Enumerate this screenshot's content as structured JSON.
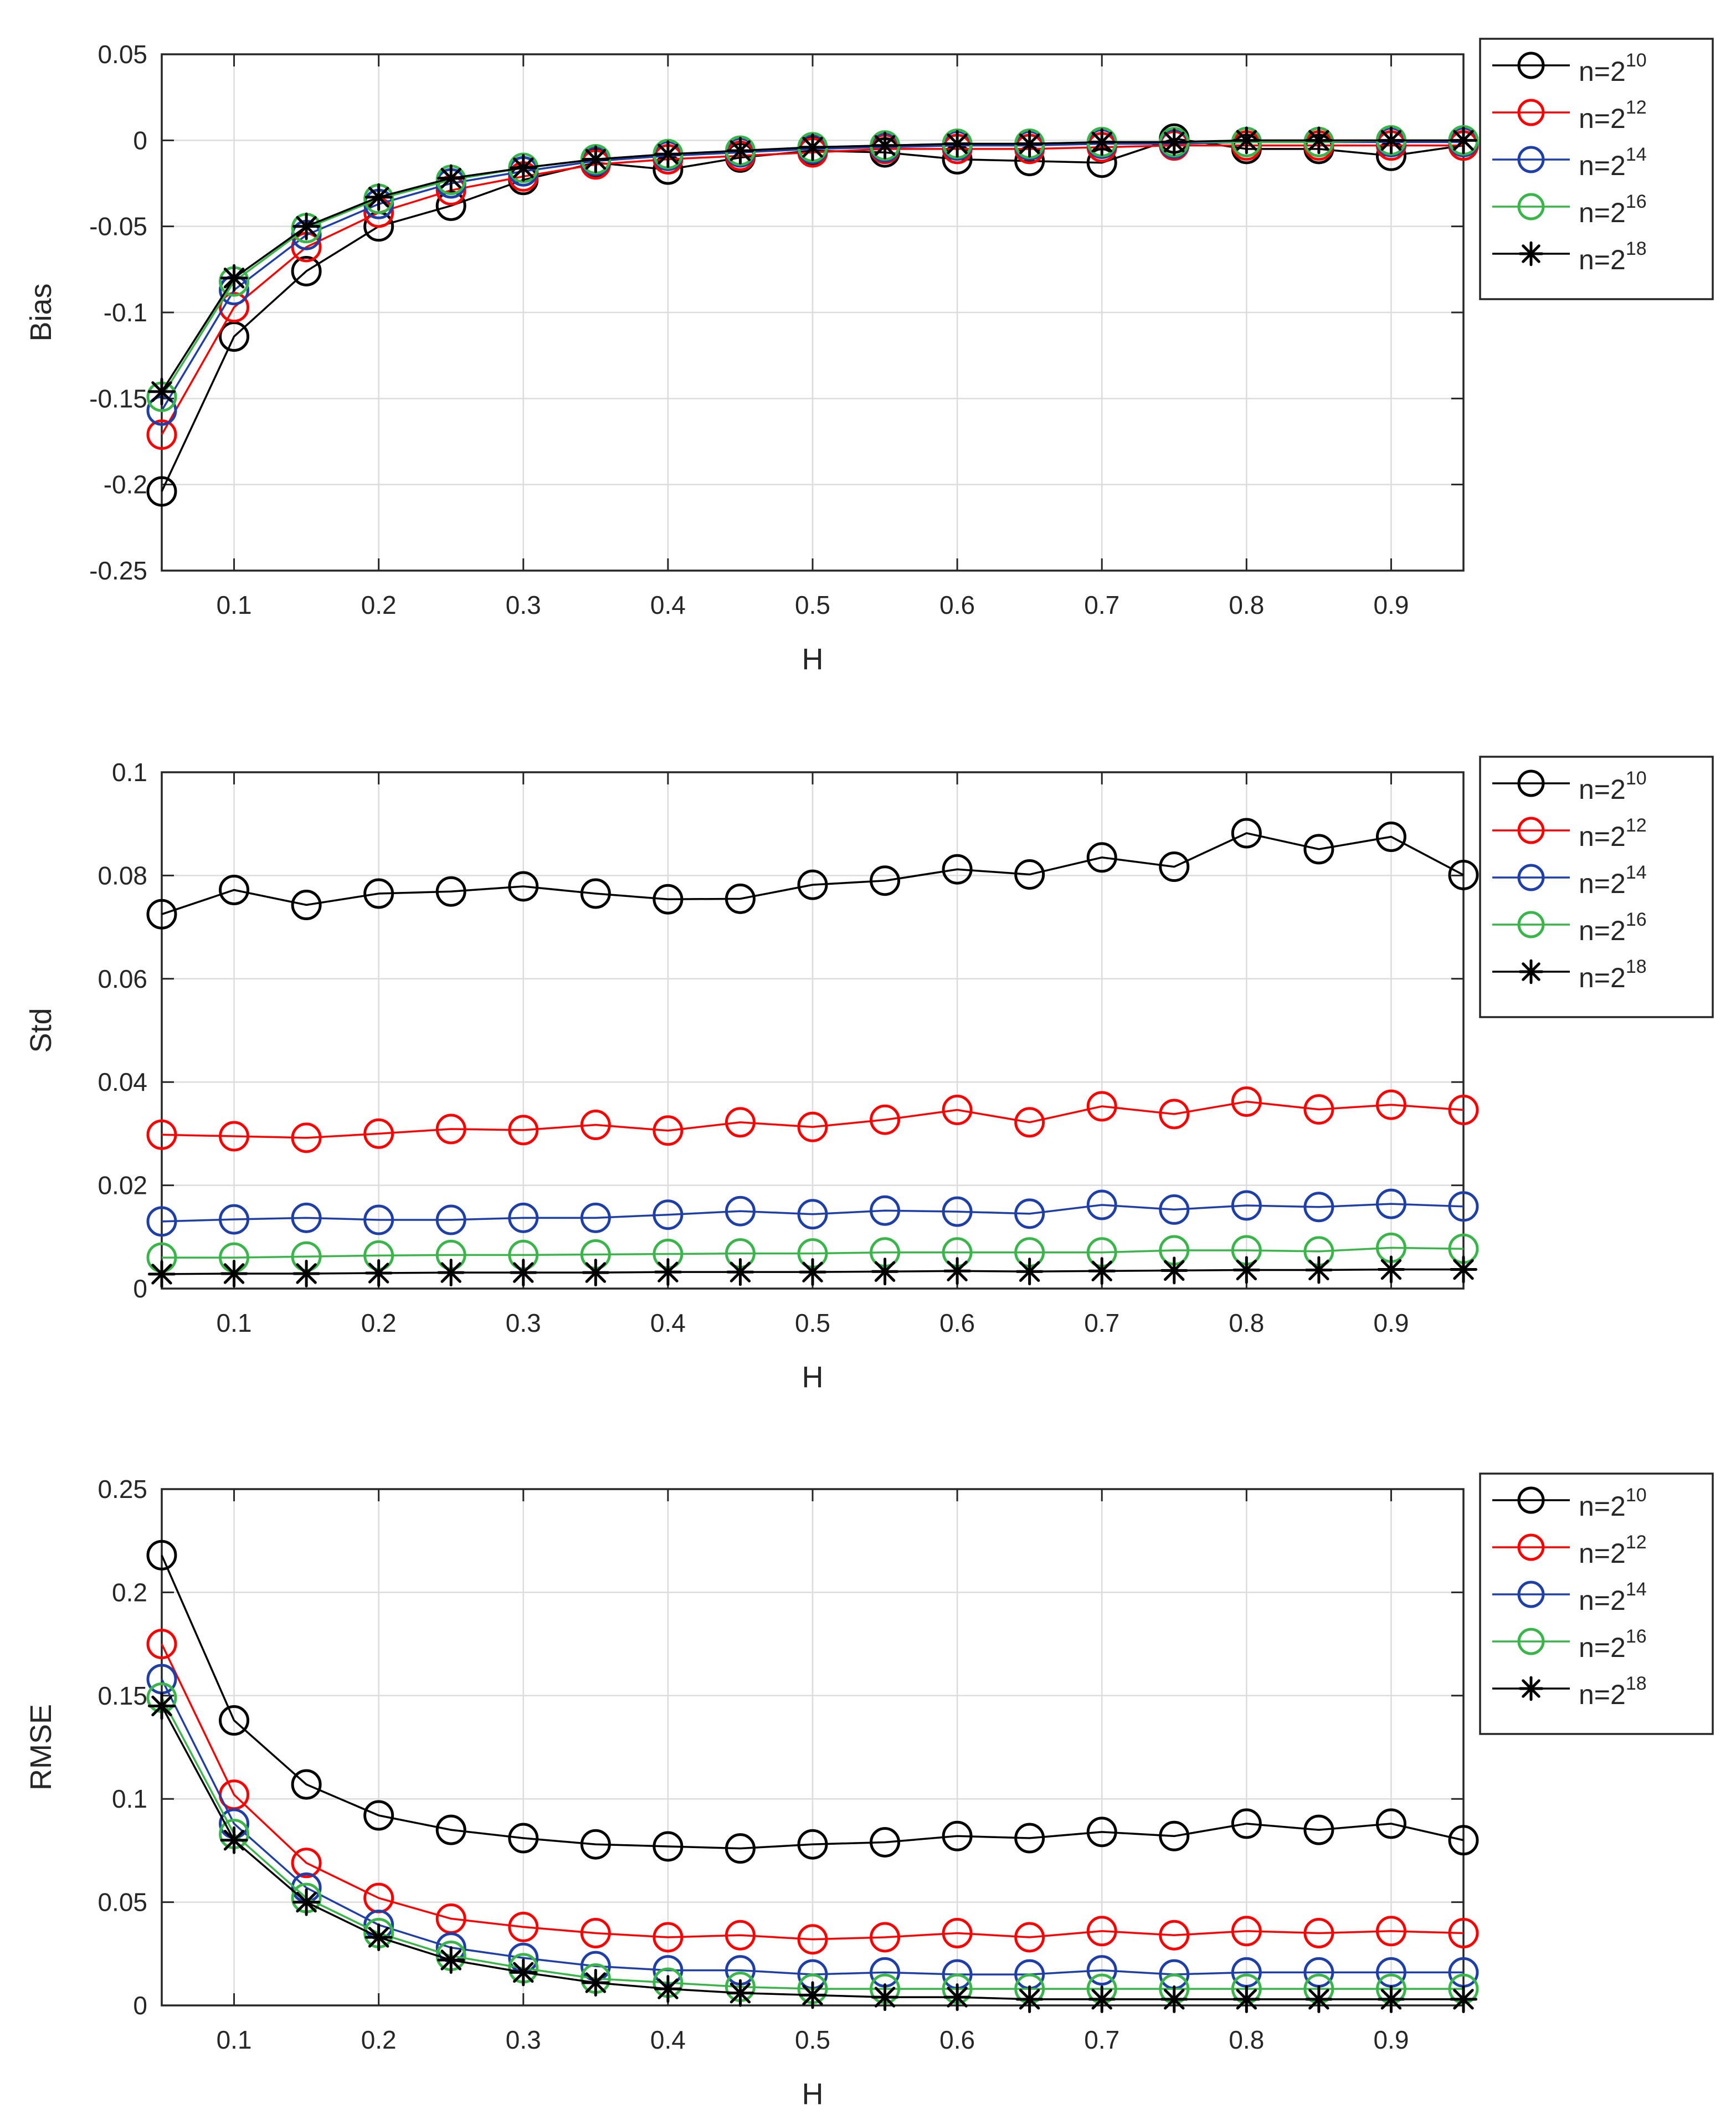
{
  "figure": {
    "colors": {
      "axis": "#262626",
      "grid": "#dcdcdc",
      "n10": "#000000",
      "n12": "#ff0000",
      "n14": "#1f3fa8",
      "n16": "#3ab54a",
      "n18": "#000000"
    }
  },
  "chart_data": [
    {
      "type": "line",
      "xlabel": "H",
      "ylabel": "Bias",
      "xlim": [
        0.05,
        0.95
      ],
      "ylim": [
        -0.25,
        0.05
      ],
      "xticks": [
        "0.1",
        "0.2",
        "0.3",
        "0.4",
        "0.5",
        "0.6",
        "0.7",
        "0.8",
        "0.9"
      ],
      "xtick_values": [
        0.1,
        0.2,
        0.3,
        0.4,
        0.5,
        0.6,
        0.7,
        0.8,
        0.9
      ],
      "yticks": [
        "-0.25",
        "-0.2",
        "-0.15",
        "-0.1",
        "-0.05",
        "0",
        "0.05"
      ],
      "ytick_values": [
        -0.25,
        -0.2,
        -0.15,
        -0.1,
        -0.05,
        0,
        0.05
      ],
      "grid": true,
      "legend_position": "outside-right-top",
      "x": [
        0.05,
        0.1,
        0.15,
        0.2,
        0.25,
        0.3,
        0.35,
        0.4,
        0.45,
        0.5,
        0.55,
        0.6,
        0.65,
        0.7,
        0.75,
        0.8,
        0.85,
        0.9,
        0.95
      ],
      "series": [
        {
          "name": "n=2^10",
          "base": "n=2",
          "exp": "10",
          "color": "#000000",
          "marker": "circle",
          "values": [
            -0.204,
            -0.114,
            -0.076,
            -0.05,
            -0.038,
            -0.023,
            -0.013,
            -0.017,
            -0.01,
            -0.006,
            -0.007,
            -0.011,
            -0.012,
            -0.013,
            0.001,
            -0.005,
            -0.005,
            -0.009,
            -0.003
          ]
        },
        {
          "name": "n=2^12",
          "base": "n=2",
          "exp": "12",
          "color": "#ff0000",
          "marker": "circle",
          "values": [
            -0.171,
            -0.097,
            -0.062,
            -0.042,
            -0.029,
            -0.021,
            -0.014,
            -0.011,
            -0.009,
            -0.007,
            -0.005,
            -0.005,
            -0.005,
            -0.004,
            -0.003,
            -0.003,
            -0.003,
            -0.003,
            -0.003
          ]
        },
        {
          "name": "n=2^14",
          "base": "n=2",
          "exp": "14",
          "color": "#1f3fa8",
          "marker": "circle",
          "values": [
            -0.157,
            -0.087,
            -0.055,
            -0.037,
            -0.025,
            -0.018,
            -0.012,
            -0.009,
            -0.007,
            -0.005,
            -0.004,
            -0.003,
            -0.003,
            -0.002,
            -0.002,
            -0.001,
            -0.001,
            -0.001,
            -0.001
          ]
        },
        {
          "name": "n=2^16",
          "base": "n=2",
          "exp": "16",
          "color": "#3ab54a",
          "marker": "circle",
          "values": [
            -0.149,
            -0.082,
            -0.051,
            -0.034,
            -0.023,
            -0.016,
            -0.011,
            -0.008,
            -0.006,
            -0.004,
            -0.003,
            -0.002,
            -0.002,
            -0.001,
            -0.001,
            -0.001,
            -0.001,
            0.0,
            0.0
          ]
        },
        {
          "name": "n=2^18",
          "base": "n=2",
          "exp": "18",
          "color": "#000000",
          "marker": "star",
          "values": [
            -0.146,
            -0.08,
            -0.05,
            -0.033,
            -0.022,
            -0.016,
            -0.011,
            -0.008,
            -0.006,
            -0.004,
            -0.003,
            -0.002,
            -0.002,
            -0.001,
            -0.001,
            0.0,
            0.0,
            0.0,
            0.0
          ]
        }
      ]
    },
    {
      "type": "line",
      "xlabel": "H",
      "ylabel": "Std",
      "xlim": [
        0.05,
        0.95
      ],
      "ylim": [
        0,
        0.1
      ],
      "xticks": [
        "0.1",
        "0.2",
        "0.3",
        "0.4",
        "0.5",
        "0.6",
        "0.7",
        "0.8",
        "0.9"
      ],
      "xtick_values": [
        0.1,
        0.2,
        0.3,
        0.4,
        0.5,
        0.6,
        0.7,
        0.8,
        0.9
      ],
      "yticks": [
        "0",
        "0.02",
        "0.04",
        "0.06",
        "0.08",
        "0.1"
      ],
      "ytick_values": [
        0,
        0.02,
        0.04,
        0.06,
        0.08,
        0.1
      ],
      "grid": true,
      "legend_position": "outside-right-top",
      "x": [
        0.05,
        0.1,
        0.15,
        0.2,
        0.25,
        0.3,
        0.35,
        0.4,
        0.45,
        0.5,
        0.55,
        0.6,
        0.65,
        0.7,
        0.75,
        0.8,
        0.85,
        0.9,
        0.95
      ],
      "series": [
        {
          "name": "n=2^10",
          "base": "n=2",
          "exp": "10",
          "color": "#000000",
          "marker": "circle",
          "values": [
            0.0725,
            0.0772,
            0.0743,
            0.0765,
            0.0769,
            0.0779,
            0.0765,
            0.0754,
            0.0755,
            0.0782,
            0.079,
            0.0812,
            0.0802,
            0.0835,
            0.0817,
            0.0882,
            0.0851,
            0.0875,
            0.0801
          ]
        },
        {
          "name": "n=2^12",
          "base": "n=2",
          "exp": "12",
          "color": "#ff0000",
          "marker": "circle",
          "values": [
            0.0298,
            0.0295,
            0.0292,
            0.03,
            0.0309,
            0.0307,
            0.0317,
            0.0306,
            0.0322,
            0.0313,
            0.0327,
            0.0346,
            0.0322,
            0.0353,
            0.0338,
            0.0362,
            0.0347,
            0.0356,
            0.0346
          ]
        },
        {
          "name": "n=2^14",
          "base": "n=2",
          "exp": "14",
          "color": "#1f3fa8",
          "marker": "circle",
          "values": [
            0.013,
            0.0134,
            0.0137,
            0.0133,
            0.0133,
            0.0137,
            0.0137,
            0.0143,
            0.015,
            0.0144,
            0.0151,
            0.0149,
            0.0145,
            0.0162,
            0.0153,
            0.0161,
            0.0158,
            0.0164,
            0.0159
          ]
        },
        {
          "name": "n=2^16",
          "base": "n=2",
          "exp": "16",
          "color": "#3ab54a",
          "marker": "circle",
          "values": [
            0.006,
            0.006,
            0.0062,
            0.0064,
            0.0065,
            0.0065,
            0.0066,
            0.0067,
            0.0068,
            0.0068,
            0.007,
            0.007,
            0.007,
            0.007,
            0.0074,
            0.0074,
            0.0072,
            0.0079,
            0.0077
          ]
        },
        {
          "name": "n=2^18",
          "base": "n=2",
          "exp": "18",
          "color": "#000000",
          "marker": "star",
          "values": [
            0.0028,
            0.0029,
            0.0029,
            0.003,
            0.0031,
            0.0031,
            0.0031,
            0.0032,
            0.0032,
            0.0032,
            0.0033,
            0.0034,
            0.0033,
            0.0034,
            0.0035,
            0.0036,
            0.0036,
            0.0037,
            0.0037
          ]
        }
      ]
    },
    {
      "type": "line",
      "xlabel": "H",
      "ylabel": "RMSE",
      "xlim": [
        0.05,
        0.95
      ],
      "ylim": [
        0,
        0.25
      ],
      "xticks": [
        "0.1",
        "0.2",
        "0.3",
        "0.4",
        "0.5",
        "0.6",
        "0.7",
        "0.8",
        "0.9"
      ],
      "xtick_values": [
        0.1,
        0.2,
        0.3,
        0.4,
        0.5,
        0.6,
        0.7,
        0.8,
        0.9
      ],
      "yticks": [
        "0",
        "0.05",
        "0.1",
        "0.15",
        "0.2",
        "0.25"
      ],
      "ytick_values": [
        0,
        0.05,
        0.1,
        0.15,
        0.2,
        0.25
      ],
      "grid": true,
      "legend_position": "outside-right-top",
      "x": [
        0.05,
        0.1,
        0.15,
        0.2,
        0.25,
        0.3,
        0.35,
        0.4,
        0.45,
        0.5,
        0.55,
        0.6,
        0.65,
        0.7,
        0.75,
        0.8,
        0.85,
        0.9,
        0.95
      ],
      "series": [
        {
          "name": "n=2^10",
          "base": "n=2",
          "exp": "10",
          "color": "#000000",
          "marker": "circle",
          "values": [
            0.218,
            0.138,
            0.107,
            0.092,
            0.085,
            0.081,
            0.078,
            0.077,
            0.076,
            0.078,
            0.079,
            0.082,
            0.081,
            0.084,
            0.082,
            0.088,
            0.085,
            0.088,
            0.08
          ]
        },
        {
          "name": "n=2^12",
          "base": "n=2",
          "exp": "12",
          "color": "#ff0000",
          "marker": "circle",
          "values": [
            0.175,
            0.102,
            0.069,
            0.052,
            0.042,
            0.038,
            0.035,
            0.033,
            0.034,
            0.032,
            0.033,
            0.035,
            0.033,
            0.036,
            0.034,
            0.036,
            0.035,
            0.036,
            0.035
          ]
        },
        {
          "name": "n=2^14",
          "base": "n=2",
          "exp": "14",
          "color": "#1f3fa8",
          "marker": "circle",
          "values": [
            0.158,
            0.088,
            0.057,
            0.039,
            0.028,
            0.023,
            0.019,
            0.017,
            0.017,
            0.015,
            0.016,
            0.015,
            0.015,
            0.017,
            0.015,
            0.016,
            0.016,
            0.016,
            0.016
          ]
        },
        {
          "name": "n=2^16",
          "base": "n=2",
          "exp": "16",
          "color": "#3ab54a",
          "marker": "circle",
          "values": [
            0.149,
            0.083,
            0.052,
            0.035,
            0.024,
            0.018,
            0.013,
            0.011,
            0.009,
            0.008,
            0.008,
            0.008,
            0.008,
            0.008,
            0.008,
            0.008,
            0.008,
            0.008,
            0.008
          ]
        },
        {
          "name": "n=2^18",
          "base": "n=2",
          "exp": "18",
          "color": "#000000",
          "marker": "star",
          "values": [
            0.145,
            0.08,
            0.05,
            0.033,
            0.022,
            0.016,
            0.011,
            0.008,
            0.006,
            0.005,
            0.004,
            0.004,
            0.003,
            0.003,
            0.003,
            0.003,
            0.003,
            0.003,
            0.003
          ]
        }
      ]
    }
  ]
}
